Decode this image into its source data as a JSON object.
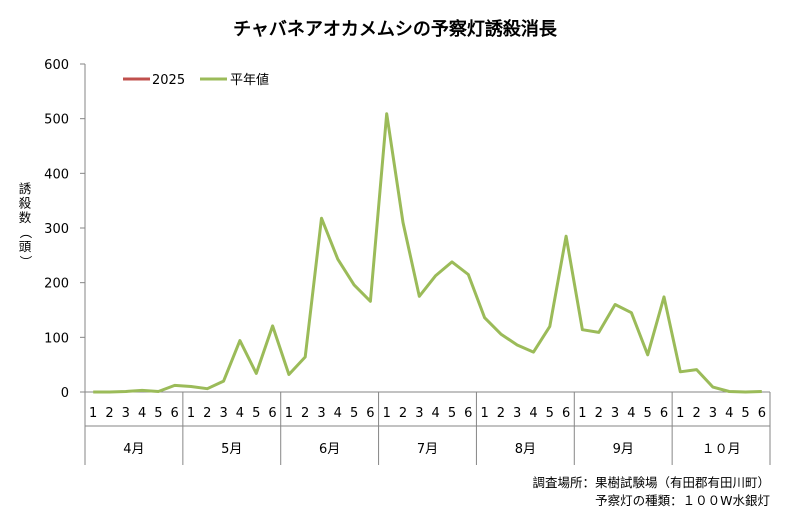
{
  "chart_data": {
    "type": "line",
    "title": "チャバネアオカメムシの予察灯誘殺消長",
    "ylabel": "誘殺数（頭）",
    "ylim": [
      0,
      600
    ],
    "yticks": [
      "0",
      "100",
      "200",
      "300",
      "400",
      "500",
      "600"
    ],
    "grid": false,
    "legend": "top-left",
    "half_month_labels": [
      "1",
      "2",
      "3",
      "4",
      "5",
      "6"
    ],
    "months": [
      "4月",
      "5月",
      "6月",
      "7月",
      "8月",
      "9月",
      "１０月"
    ],
    "series": [
      {
        "name": "2025",
        "color": "#c0504d",
        "values": []
      },
      {
        "name": "平年値",
        "color": "#9bbb59",
        "values": [
          0,
          0,
          1,
          3,
          1,
          12,
          10,
          6,
          20,
          94,
          34,
          121,
          32,
          64,
          318,
          243,
          196,
          166,
          509,
          310,
          175,
          213,
          238,
          215,
          136,
          106,
          86,
          73,
          120,
          285,
          114,
          109,
          160,
          145,
          68,
          174,
          37,
          41,
          9,
          1,
          0,
          1
        ]
      }
    ],
    "footnotes": [
      "調査場所：果樹試験場（有田郡有田川町）",
      "予察灯の種類：１００W水銀灯"
    ]
  }
}
